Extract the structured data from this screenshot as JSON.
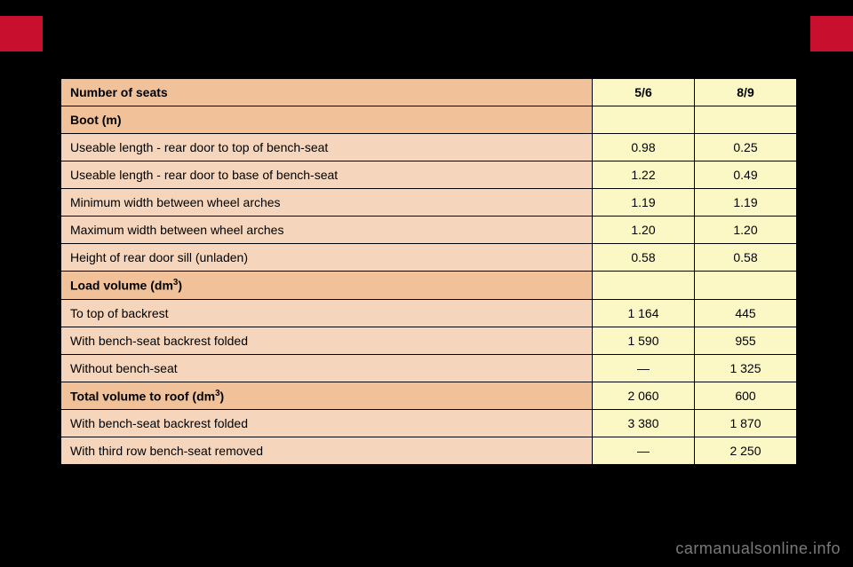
{
  "tabs": {
    "left_color": "#c8102e",
    "right_color": "#c8102e"
  },
  "table": {
    "header": {
      "label": "Number of seats",
      "col1": "5/6",
      "col2": "8/9"
    },
    "sections": [
      {
        "title": "Boot (m)",
        "title_col1": "",
        "title_col2": "",
        "rows": [
          {
            "label": "Useable length - rear door to top of bench-seat",
            "v1": "0.98",
            "v2": "0.25"
          },
          {
            "label": "Useable length - rear door to base of bench-seat",
            "v1": "1.22",
            "v2": "0.49"
          },
          {
            "label": "Minimum width between wheel arches",
            "v1": "1.19",
            "v2": "1.19"
          },
          {
            "label": "Maximum width between wheel arches",
            "v1": "1.20",
            "v2": "1.20"
          },
          {
            "label": "Height of rear door sill (unladen)",
            "v1": "0.58",
            "v2": "0.58"
          }
        ]
      },
      {
        "title_html": "Load volume (dm<sup>3</sup>)",
        "title": "Load volume (dm3)",
        "title_col1": "",
        "title_col2": "",
        "rows": [
          {
            "label": "To top of backrest",
            "v1": "1 164",
            "v2": "445"
          },
          {
            "label": "With bench-seat backrest folded",
            "v1": "1 590",
            "v2": "955"
          },
          {
            "label": "Without bench-seat",
            "v1": "—",
            "v2": "1 325"
          }
        ]
      },
      {
        "title_html": "Total volume to roof (dm<sup>3</sup>)",
        "title": "Total volume to roof (dm3)",
        "title_col1": "2 060",
        "title_col2": "600",
        "rows": [
          {
            "label": "With bench-seat backrest folded",
            "v1": "3 380",
            "v2": "1 870"
          },
          {
            "label": "With third row bench-seat removed",
            "v1": "—",
            "v2": "2 250"
          }
        ]
      }
    ],
    "colors": {
      "section_label_bg": "#f1c299",
      "data_label_bg": "#f5d6bc",
      "value_bg": "#fbf8c5",
      "border": "#000000"
    },
    "fontsize": 14
  },
  "watermark": "carmanualsonline.info"
}
